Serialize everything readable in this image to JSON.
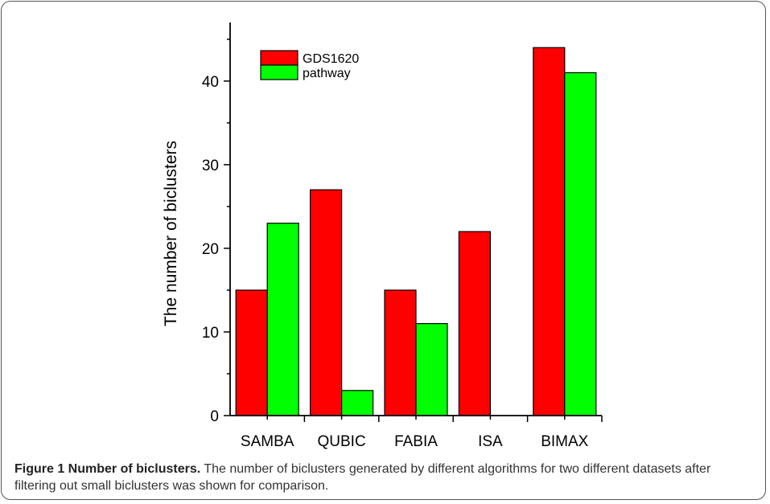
{
  "chart_data": {
    "type": "bar",
    "categories": [
      "SAMBA",
      "QUBIC",
      "FABIA",
      "ISA",
      "BIMAX"
    ],
    "series": [
      {
        "name": "GDS1620",
        "values": [
          15,
          27,
          15,
          22,
          44
        ],
        "color": "#ff0000"
      },
      {
        "name": "pathway",
        "values": [
          23,
          3,
          11,
          0,
          41
        ],
        "color": "#00ff00"
      }
    ],
    "ylabel": "The number of biclusters",
    "xlabel": "",
    "ylim": [
      0,
      47
    ],
    "yticks": [
      0,
      10,
      20,
      30,
      40
    ],
    "yminor_step": 5,
    "grid": false,
    "legend_position": "top-left"
  },
  "caption": {
    "title": "Figure 1 Number of biclusters.",
    "text": " The number of biclusters generated by different algorithms for two different datasets after filtering out small biclusters was shown for comparison."
  }
}
